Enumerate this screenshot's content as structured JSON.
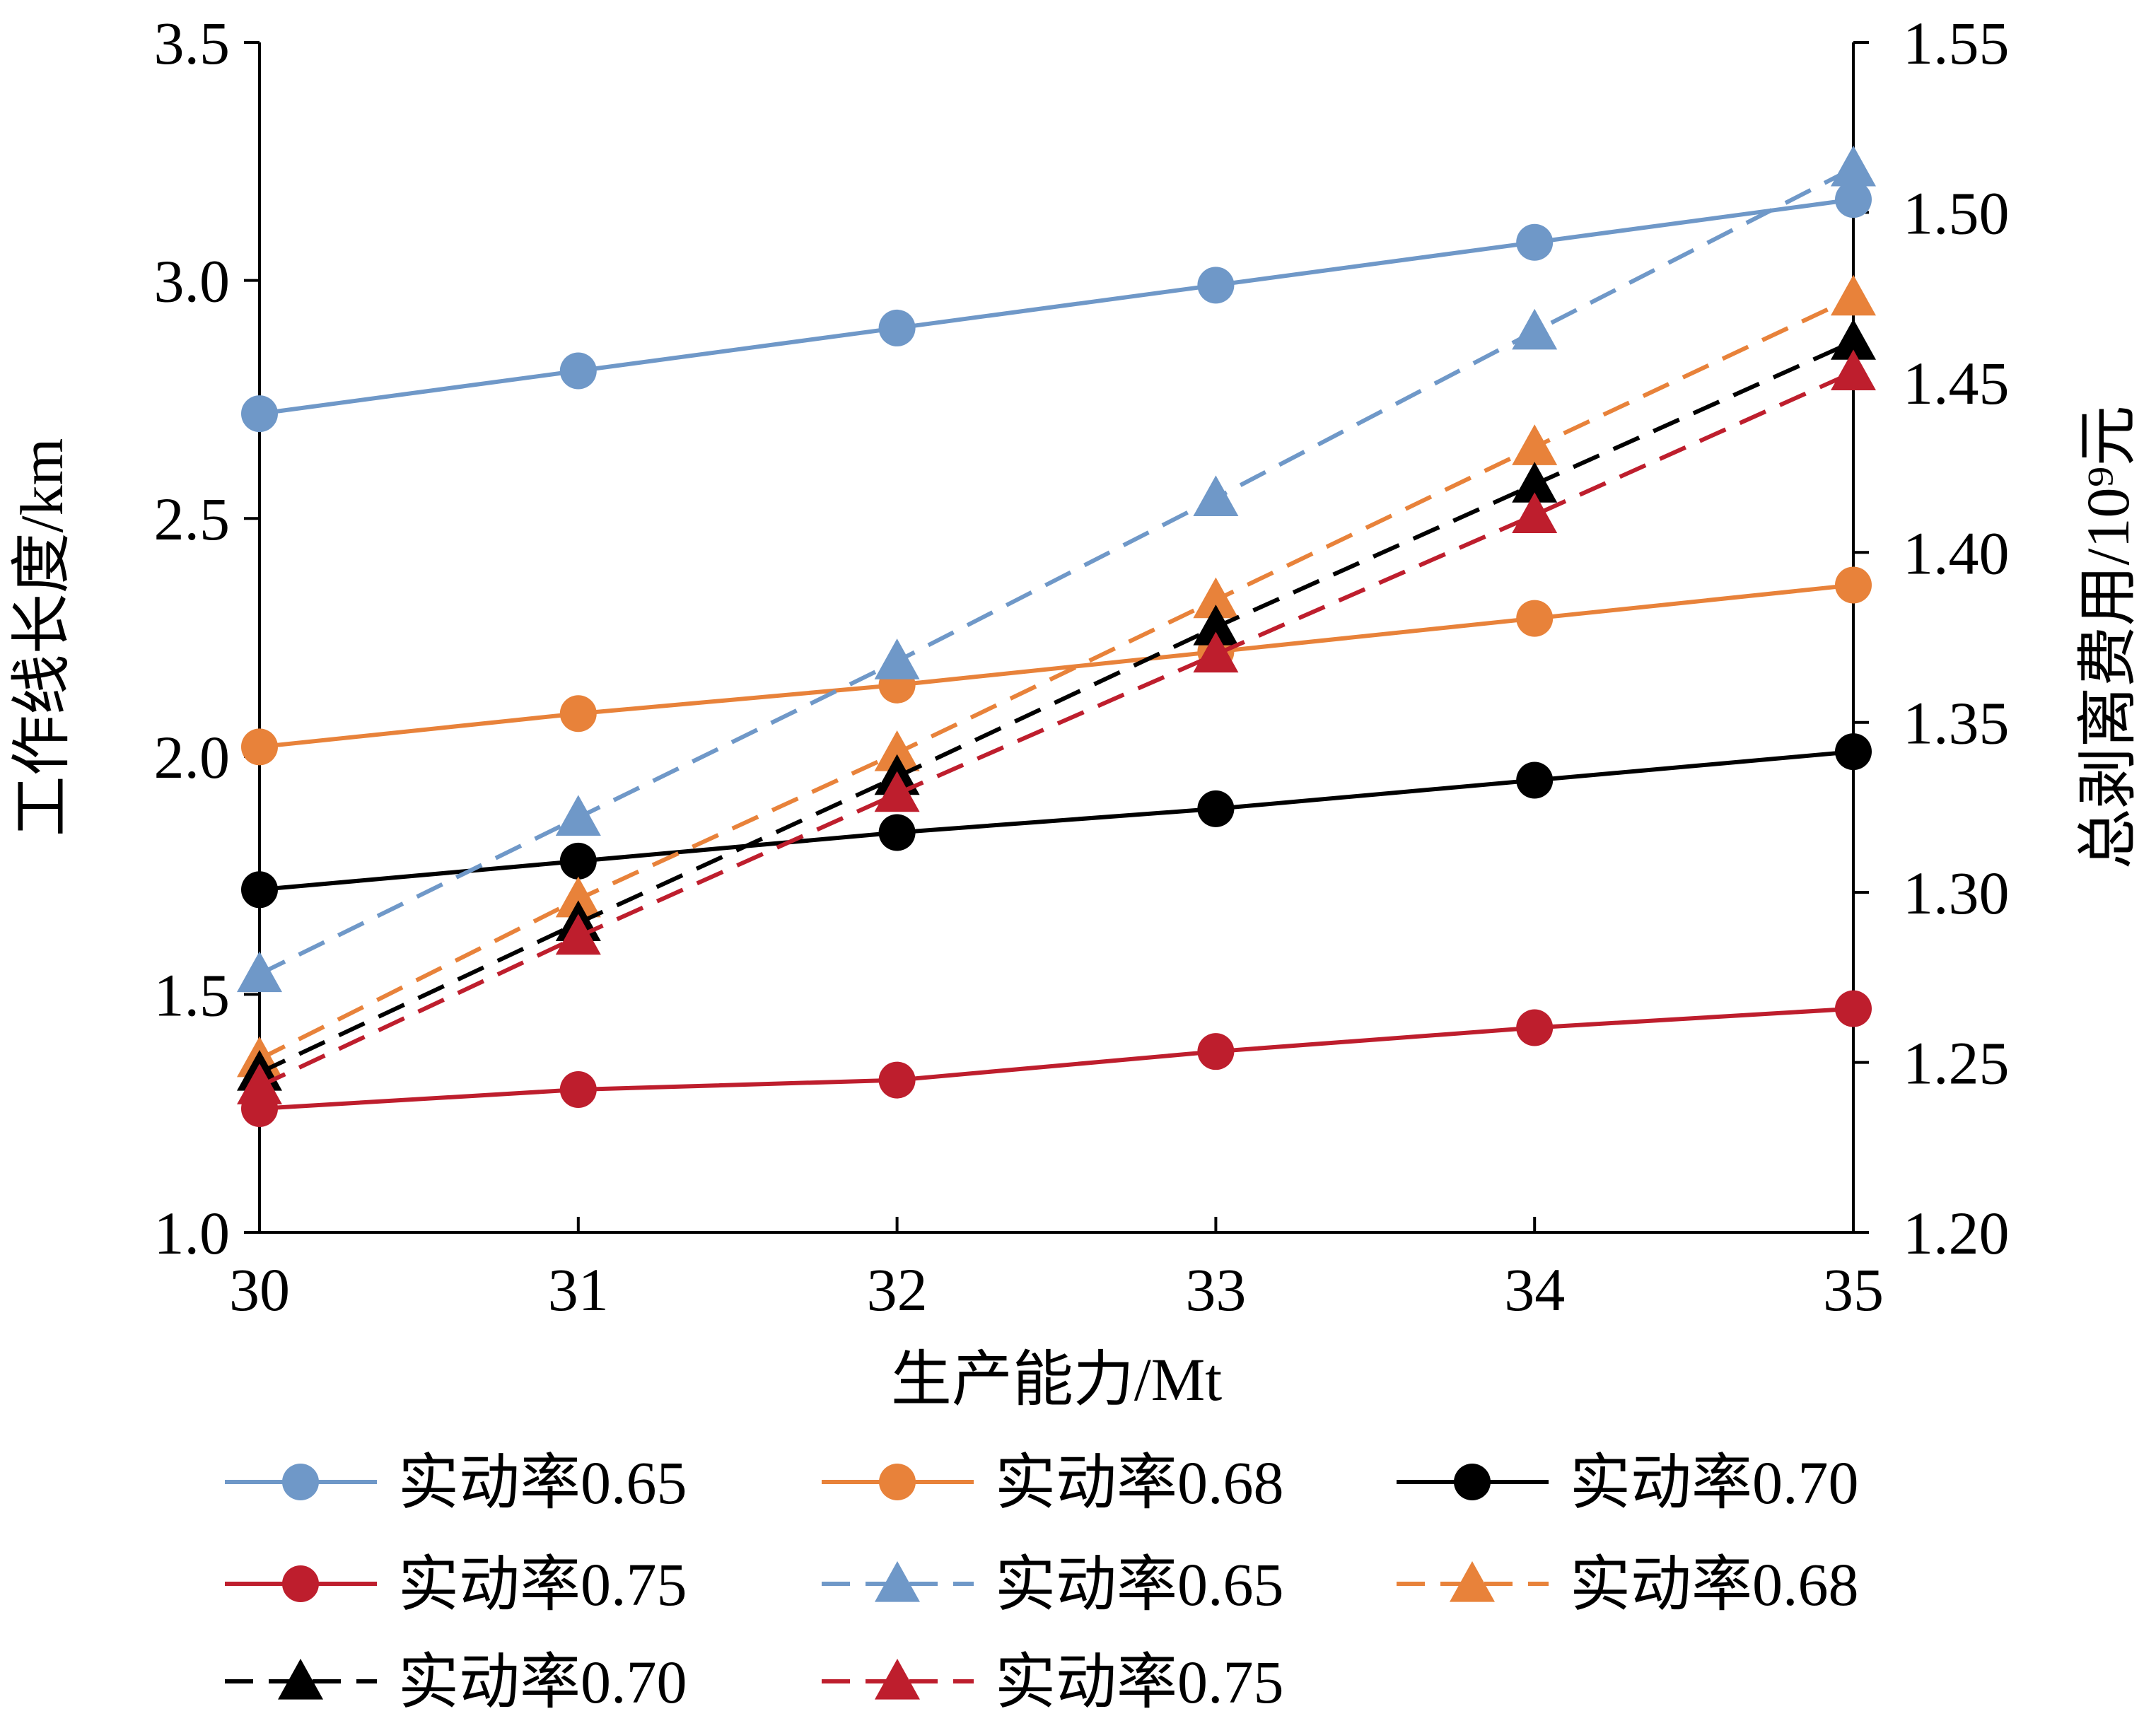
{
  "chart_data": {
    "type": "line",
    "xlabel": "生产能力/Mt",
    "ylabel_left": "工作线长度/km",
    "ylabel_right": "总剥离费用/10⁹元",
    "x": [
      30,
      31,
      32,
      33,
      34,
      35
    ],
    "x_ticks": [
      "30",
      "31",
      "32",
      "33",
      "34",
      "35"
    ],
    "xlim": [
      30,
      35
    ],
    "ylim_left": [
      1.0,
      3.5
    ],
    "ylim_right": [
      1.2,
      1.55
    ],
    "y_ticks_left": [
      "1.0",
      "1.5",
      "2.0",
      "2.5",
      "3.0",
      "3.5"
    ],
    "y_ticks_right": [
      "1.20",
      "1.25",
      "1.30",
      "1.35",
      "1.40",
      "1.45",
      "1.50",
      "1.55"
    ],
    "grid": false,
    "legend_position": "bottom",
    "series": [
      {
        "name": "实动率0.65",
        "axis": "left",
        "marker": "circle",
        "dash": false,
        "color": "#6F98C8",
        "values": [
          2.72,
          2.81,
          2.9,
          2.99,
          3.08,
          3.17
        ]
      },
      {
        "name": "实动率0.68",
        "axis": "left",
        "marker": "circle",
        "dash": false,
        "color": "#E8823A",
        "values": [
          2.02,
          2.09,
          2.15,
          2.22,
          2.29,
          2.36
        ]
      },
      {
        "name": "实动率0.70",
        "axis": "left",
        "marker": "circle",
        "dash": false,
        "color": "#000000",
        "values": [
          1.72,
          1.78,
          1.84,
          1.89,
          1.95,
          2.01
        ]
      },
      {
        "name": "实动率0.75",
        "axis": "left",
        "marker": "circle",
        "dash": false,
        "color": "#BE1E2D",
        "values": [
          1.26,
          1.3,
          1.32,
          1.38,
          1.43,
          1.47
        ]
      },
      {
        "name": "实动率0.65",
        "axis": "right",
        "marker": "triangle",
        "dash": true,
        "color": "#6F98C8",
        "values": [
          1.276,
          1.322,
          1.368,
          1.416,
          1.465,
          1.513
        ]
      },
      {
        "name": "实动率0.68",
        "axis": "right",
        "marker": "triangle",
        "dash": true,
        "color": "#E8823A",
        "values": [
          1.251,
          1.298,
          1.341,
          1.386,
          1.431,
          1.475
        ]
      },
      {
        "name": "实动率0.70",
        "axis": "right",
        "marker": "triangle",
        "dash": true,
        "color": "#000000",
        "values": [
          1.247,
          1.291,
          1.334,
          1.378,
          1.42,
          1.462
        ]
      },
      {
        "name": "实动率0.75",
        "axis": "right",
        "marker": "triangle",
        "dash": true,
        "color": "#BE1E2D",
        "values": [
          1.243,
          1.287,
          1.329,
          1.37,
          1.411,
          1.453
        ]
      }
    ]
  }
}
